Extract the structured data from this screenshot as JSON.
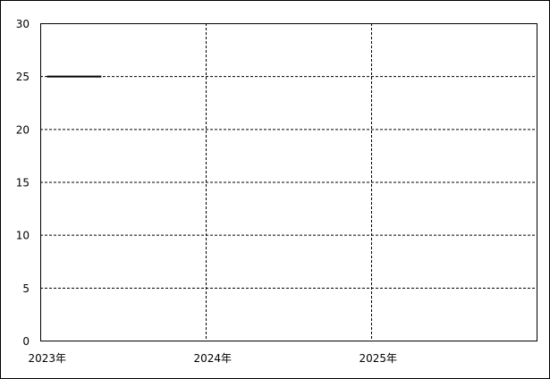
{
  "chart_data": {
    "type": "line",
    "title": "",
    "xlabel": "",
    "ylabel": "",
    "x_axis_type": "date",
    "xlim": [
      "2023-01-01",
      "2026-01-01"
    ],
    "ylim": [
      0,
      30
    ],
    "y_ticks": [
      0,
      5,
      10,
      15,
      20,
      25,
      30
    ],
    "x_ticks": [
      {
        "date": "2023-01-01",
        "label": "2023年"
      },
      {
        "date": "2024-01-01",
        "label": "2024年"
      },
      {
        "date": "2025-01-01",
        "label": "2025年"
      }
    ],
    "grid": true,
    "grid_style": "dashed",
    "series": [
      {
        "color": "#000000",
        "points": [
          {
            "x": "2023-01-16",
            "y": 25
          },
          {
            "x": "2023-05-16",
            "y": 25
          }
        ]
      }
    ]
  }
}
